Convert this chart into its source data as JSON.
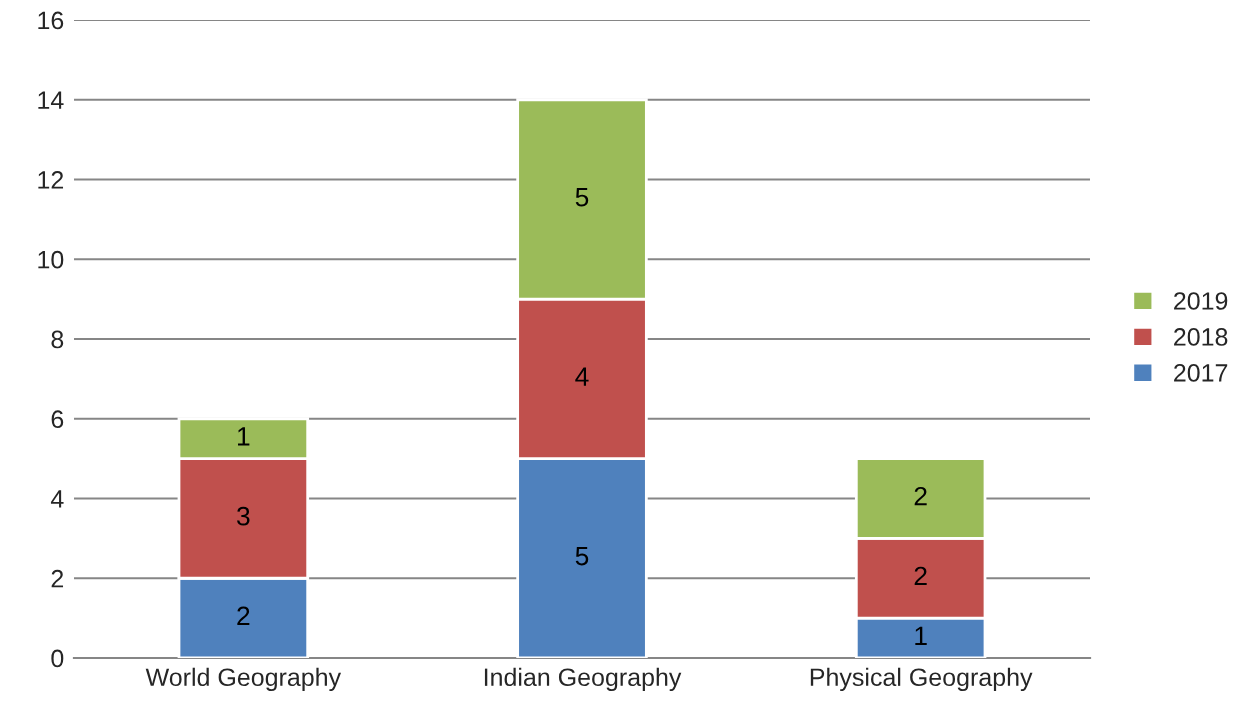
{
  "chart_data": {
    "type": "bar",
    "stacked": true,
    "categories": [
      "World Geography",
      "Indian Geography",
      "Physical Geography"
    ],
    "series": [
      {
        "name": "2017",
        "color": "#4f81bd",
        "values": [
          2,
          5,
          1
        ]
      },
      {
        "name": "2018",
        "color": "#c0504d",
        "values": [
          3,
          4,
          2
        ]
      },
      {
        "name": "2019",
        "color": "#9bbb59",
        "values": [
          1,
          5,
          2
        ]
      }
    ],
    "ylim": [
      0,
      16
    ],
    "yticks": [
      0,
      2,
      4,
      6,
      8,
      10,
      12,
      14,
      16
    ],
    "grid": "y",
    "legend": "right",
    "data_labels": true
  }
}
